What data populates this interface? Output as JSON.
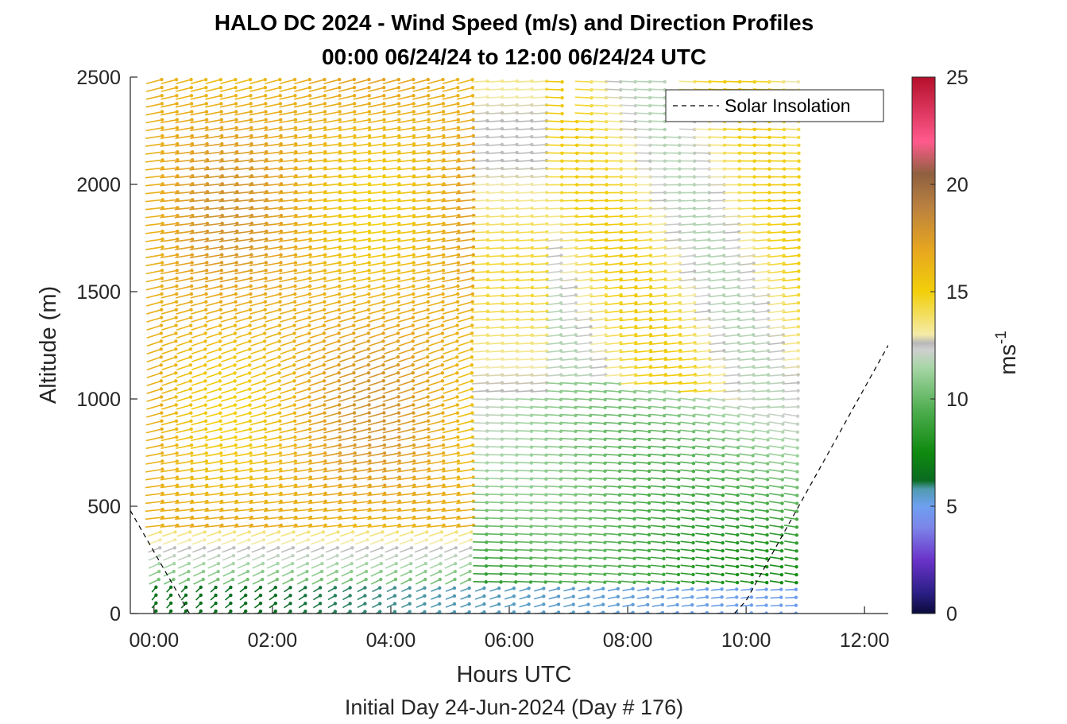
{
  "chart_data": {
    "type": "wind-barb-profile",
    "title": "HALO DC 2024 - Wind Speed (m/s) and Direction Profiles",
    "subtitle": "00:00 06/24/24 to 12:00 06/24/24  UTC",
    "xlabel": "Hours UTC",
    "xlabel2": "Initial Day 24-Jun-2024 (Day # 176)",
    "ylabel": "Altitude (m)",
    "xlim": [
      -0.4,
      12.4
    ],
    "ylim": [
      0,
      2500
    ],
    "x_ticks": [
      0,
      2,
      4,
      6,
      8,
      10,
      12
    ],
    "x_tick_labels": [
      "00:00",
      "02:00",
      "04:00",
      "06:00",
      "08:00",
      "10:00",
      "12:00"
    ],
    "y_ticks": [
      0,
      500,
      1000,
      1500,
      2000,
      2500
    ],
    "y_tick_labels": [
      "0",
      "500",
      "1000",
      "1500",
      "2000",
      "2500"
    ],
    "legend": {
      "label": "Solar Insolation",
      "placement": "top-right"
    },
    "colorbar": {
      "label": "ms",
      "label_sup": "-1",
      "min": 0,
      "max": 25,
      "ticks": [
        0,
        5,
        10,
        15,
        20,
        25
      ],
      "tick_labels": [
        "0",
        "5",
        "10",
        "15",
        "20",
        "25"
      ],
      "stops": [
        [
          0.0,
          "#0b0b3b"
        ],
        [
          1.0,
          "#2c1f87"
        ],
        [
          2.5,
          "#6a33c9"
        ],
        [
          4.0,
          "#7c84e8"
        ],
        [
          5.0,
          "#6ea0f0"
        ],
        [
          5.8,
          "#4f9ab0"
        ],
        [
          6.2,
          "#0a6b20"
        ],
        [
          7.5,
          "#0f8a0f"
        ],
        [
          9.5,
          "#4fae4f"
        ],
        [
          11.5,
          "#a8d6a8"
        ],
        [
          12.3,
          "#cfcfcf"
        ],
        [
          12.6,
          "#b8b8b8"
        ],
        [
          13.0,
          "#f4eba8"
        ],
        [
          15.0,
          "#f2cf0a"
        ],
        [
          17.0,
          "#e6a520"
        ],
        [
          19.0,
          "#b88040"
        ],
        [
          20.5,
          "#8f6040"
        ],
        [
          22.0,
          "#ff5a8c"
        ],
        [
          25.0,
          "#b50f2b"
        ]
      ]
    },
    "barb_hours_start": 0.0,
    "barb_hours_end": 10.8,
    "barb_hours_step": 0.25,
    "barb_altitudes_start": 0,
    "barb_altitudes_end": 2500,
    "barb_altitudes_step": 37,
    "insolation_curve": {
      "hours": [
        -0.4,
        0.6,
        1.0,
        9.8,
        10.0,
        12.4
      ],
      "altitude": [
        480,
        0,
        0,
        0,
        60,
        1250
      ]
    },
    "wind_regimes": [
      {
        "name": "night-upper",
        "hours": [
          0,
          5.5
        ],
        "alt": [
          400,
          2500
        ],
        "speed": 16.5,
        "direction_deg": 250
      },
      {
        "name": "morning-lower",
        "hours": [
          5.5,
          10.8
        ],
        "alt": [
          150,
          1200
        ],
        "speed": 9.0,
        "direction_deg": 280
      },
      {
        "name": "surface-low",
        "hours": [
          0,
          10.8
        ],
        "alt": [
          0,
          150
        ],
        "speed": 6.5,
        "direction_deg": 200
      },
      {
        "name": "morning-upper",
        "hours": [
          6.5,
          10.8
        ],
        "alt": [
          1200,
          2500
        ],
        "speed": 14.0,
        "direction_deg": 265
      }
    ]
  }
}
